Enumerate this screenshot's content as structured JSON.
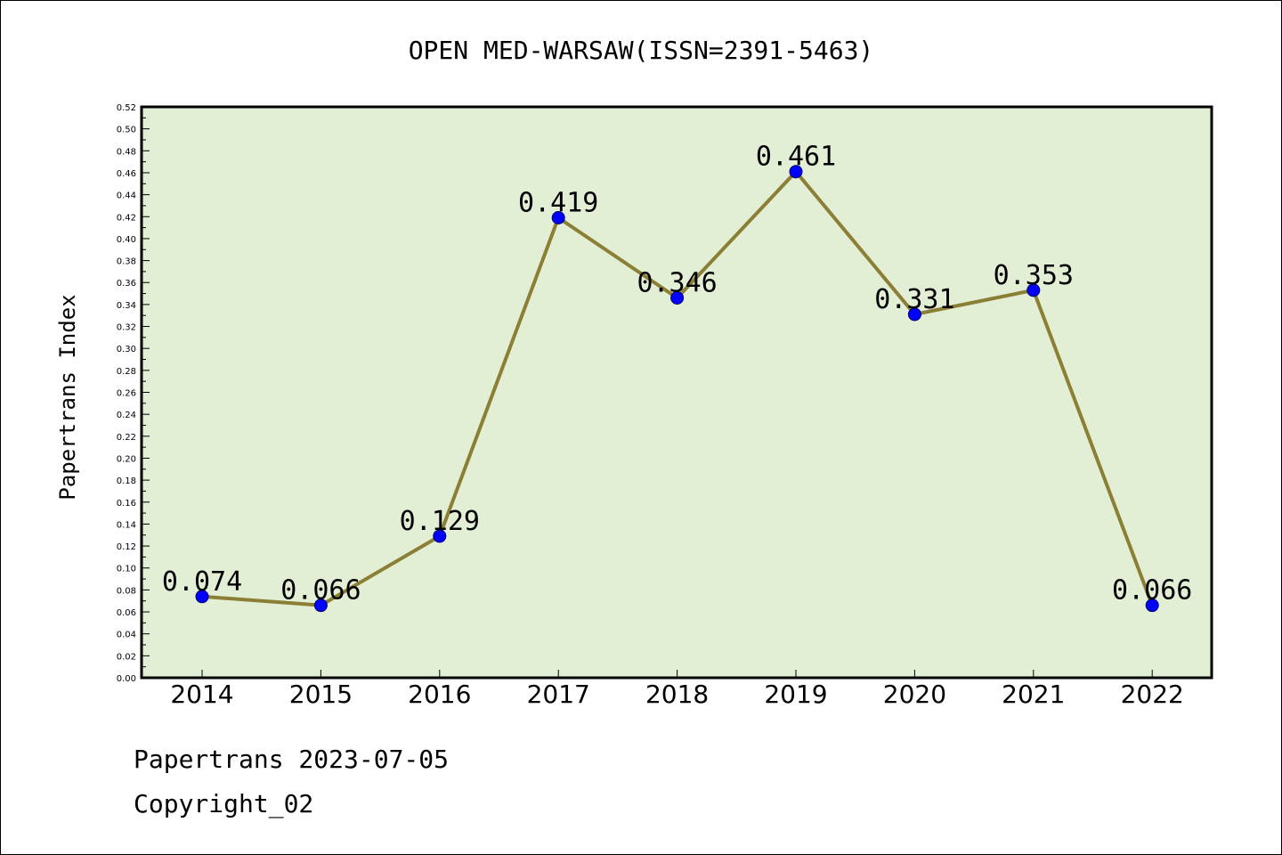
{
  "footer": {
    "line1": "Papertrans 2023-07-05",
    "line2": "Copyright_02"
  },
  "colors": {
    "plot_background": "#e2efd5",
    "line": "#8b7f35",
    "marker": "#0000ff",
    "marker_edge": "#000066"
  },
  "chart_data": {
    "type": "line",
    "title": "OPEN MED-WARSAW(ISSN=2391-5463)",
    "xlabel": "",
    "ylabel": "Papertrans Index",
    "categories": [
      "2014",
      "2015",
      "2016",
      "2017",
      "2018",
      "2019",
      "2020",
      "2021",
      "2022"
    ],
    "series": [
      {
        "values": [
          0.074,
          0.066,
          0.129,
          0.419,
          0.346,
          0.461,
          0.331,
          0.353,
          0.066
        ],
        "labels": [
          "0.074",
          "0.066",
          "0.129",
          "0.419",
          "0.346",
          "0.461",
          "0.331",
          "0.353",
          "0.066"
        ]
      }
    ],
    "ylim": [
      0,
      0.52
    ],
    "yticks": [
      "0.00",
      "0.02",
      "0.04",
      "0.06",
      "0.08",
      "0.10",
      "0.12",
      "0.14",
      "0.16",
      "0.18",
      "0.20",
      "0.22",
      "0.24",
      "0.26",
      "0.28",
      "0.30",
      "0.32",
      "0.34",
      "0.36",
      "0.38",
      "0.40",
      "0.42",
      "0.44",
      "0.46",
      "0.48",
      "0.50",
      "0.52"
    ],
    "grid": false,
    "legend": "none"
  }
}
